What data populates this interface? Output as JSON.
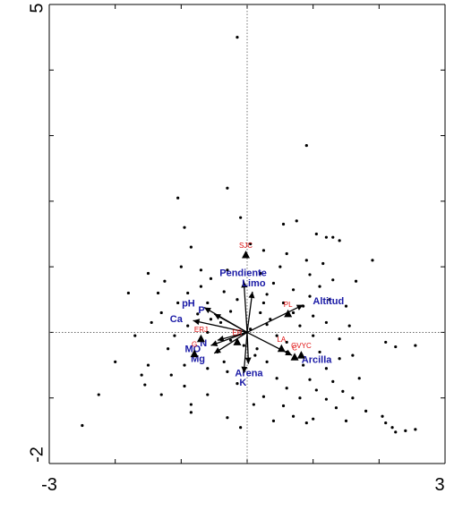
{
  "chart_data": {
    "type": "scatter",
    "title": "",
    "xlabel": "",
    "ylabel": "",
    "xlim": [
      -3,
      3
    ],
    "ylim": [
      -2,
      5
    ],
    "x_tick_labels": [
      "-3",
      "3"
    ],
    "y_tick_labels": [
      "5",
      "-2"
    ],
    "reference_lines": {
      "x": 0,
      "y": 0,
      "style": "dotted"
    },
    "colors": {
      "vectors": "#1a1aa6",
      "sites": "#e01010",
      "points": "#000000"
    },
    "vectors": [
      {
        "name": "Pendiente",
        "x": -0.05,
        "y": 0.78
      },
      {
        "name": "Limo",
        "x": 0.08,
        "y": 0.62
      },
      {
        "name": "Altitud",
        "x": 0.85,
        "y": 0.42
      },
      {
        "name": "Arcilla",
        "x": 0.68,
        "y": -0.35
      },
      {
        "name": "pH",
        "x": -0.65,
        "y": 0.38
      },
      {
        "name": "P",
        "x": -0.5,
        "y": 0.28
      },
      {
        "name": "Ca",
        "x": -0.82,
        "y": 0.18
      },
      {
        "name": "N",
        "x": -0.45,
        "y": -0.12
      },
      {
        "name": "MO",
        "x": -0.55,
        "y": -0.2
      },
      {
        "name": "Mg",
        "x": -0.5,
        "y": -0.32
      },
      {
        "name": "Arena",
        "x": 0.02,
        "y": -0.48
      },
      {
        "name": "K",
        "x": -0.05,
        "y": -0.62
      }
    ],
    "sites": [
      {
        "name": "SJC",
        "x": -0.02,
        "y": 1.18
      },
      {
        "name": "PL",
        "x": 0.62,
        "y": 0.28
      },
      {
        "name": "LA",
        "x": 0.52,
        "y": -0.25
      },
      {
        "name": "GVYC",
        "x": 0.82,
        "y": -0.35
      },
      {
        "name": "C",
        "x": 0.72,
        "y": -0.38
      },
      {
        "name": "ERJ",
        "x": -0.7,
        "y": -0.1
      },
      {
        "name": "ER",
        "x": -0.15,
        "y": -0.15
      },
      {
        "name": "G",
        "x": -0.8,
        "y": -0.33
      }
    ],
    "points": [
      [
        -0.15,
        4.5
      ],
      [
        0.9,
        2.85
      ],
      [
        -1.05,
        2.05
      ],
      [
        -0.3,
        2.2
      ],
      [
        -0.95,
        1.6
      ],
      [
        -0.1,
        1.75
      ],
      [
        0.55,
        1.65
      ],
      [
        0.75,
        1.7
      ],
      [
        1.05,
        1.5
      ],
      [
        1.2,
        1.45
      ],
      [
        1.3,
        1.45
      ],
      [
        1.4,
        1.4
      ],
      [
        -0.85,
        1.3
      ],
      [
        0.05,
        1.35
      ],
      [
        0.25,
        1.25
      ],
      [
        0.6,
        1.2
      ],
      [
        0.9,
        1.1
      ],
      [
        1.15,
        1.05
      ],
      [
        1.9,
        1.1
      ],
      [
        -1.5,
        0.9
      ],
      [
        -1.0,
        1.0
      ],
      [
        -0.7,
        0.95
      ],
      [
        -0.3,
        0.95
      ],
      [
        0.2,
        0.9
      ],
      [
        0.5,
        1.0
      ],
      [
        0.95,
        0.88
      ],
      [
        1.3,
        0.8
      ],
      [
        1.65,
        0.78
      ],
      [
        -1.25,
        0.78
      ],
      [
        -0.55,
        0.82
      ],
      [
        0.4,
        0.75
      ],
      [
        0.7,
        0.65
      ],
      [
        1.1,
        0.7
      ],
      [
        -1.8,
        0.6
      ],
      [
        -1.35,
        0.6
      ],
      [
        -0.9,
        0.6
      ],
      [
        -0.35,
        0.62
      ],
      [
        0.3,
        0.58
      ],
      [
        0.95,
        0.55
      ],
      [
        1.25,
        0.5
      ],
      [
        -1.05,
        0.45
      ],
      [
        -0.6,
        0.45
      ],
      [
        -0.15,
        0.5
      ],
      [
        0.55,
        0.45
      ],
      [
        1.5,
        0.4
      ],
      [
        -1.3,
        0.3
      ],
      [
        -0.75,
        0.28
      ],
      [
        -0.25,
        0.32
      ],
      [
        0.2,
        0.3
      ],
      [
        0.7,
        0.3
      ],
      [
        1.0,
        0.25
      ],
      [
        -1.45,
        0.15
      ],
      [
        -0.9,
        0.1
      ],
      [
        -0.4,
        0.15
      ],
      [
        0.3,
        0.12
      ],
      [
        0.8,
        0.1
      ],
      [
        1.2,
        0.15
      ],
      [
        1.55,
        0.1
      ],
      [
        -1.7,
        -0.05
      ],
      [
        -1.1,
        -0.05
      ],
      [
        -0.6,
        0.0
      ],
      [
        0.45,
        -0.05
      ],
      [
        1.0,
        -0.05
      ],
      [
        1.4,
        -0.1
      ],
      [
        2.1,
        -0.15
      ],
      [
        2.25,
        -0.22
      ],
      [
        2.55,
        -0.2
      ],
      [
        -1.2,
        -0.25
      ],
      [
        -0.45,
        -0.3
      ],
      [
        0.15,
        -0.25
      ],
      [
        0.6,
        -0.3
      ],
      [
        1.1,
        -0.3
      ],
      [
        1.4,
        -0.4
      ],
      [
        1.6,
        -0.35
      ],
      [
        -2.0,
        -0.45
      ],
      [
        -1.5,
        -0.5
      ],
      [
        -0.95,
        -0.5
      ],
      [
        -0.6,
        -0.55
      ],
      [
        0.3,
        -0.45
      ],
      [
        0.85,
        -0.5
      ],
      [
        1.2,
        -0.55
      ],
      [
        -1.6,
        -0.65
      ],
      [
        -1.15,
        -0.65
      ],
      [
        -0.3,
        -0.6
      ],
      [
        0.45,
        -0.7
      ],
      [
        0.95,
        -0.72
      ],
      [
        1.3,
        -0.75
      ],
      [
        1.7,
        -0.7
      ],
      [
        -1.55,
        -0.8
      ],
      [
        -0.95,
        -0.82
      ],
      [
        -0.15,
        -0.78
      ],
      [
        0.6,
        -0.85
      ],
      [
        1.05,
        -0.88
      ],
      [
        1.45,
        -0.9
      ],
      [
        -2.25,
        -0.95
      ],
      [
        -1.3,
        -0.95
      ],
      [
        -0.6,
        -0.95
      ],
      [
        0.25,
        -0.98
      ],
      [
        0.8,
        -1.0
      ],
      [
        1.2,
        -1.02
      ],
      [
        1.6,
        -1.0
      ],
      [
        -0.85,
        -1.1
      ],
      [
        0.1,
        -1.1
      ],
      [
        0.55,
        -1.12
      ],
      [
        1.35,
        -1.15
      ],
      [
        1.8,
        -1.2
      ],
      [
        -0.3,
        -1.3
      ],
      [
        0.7,
        -1.28
      ],
      [
        1.0,
        -1.32
      ],
      [
        1.5,
        -1.35
      ],
      [
        0.9,
        -1.38
      ],
      [
        0.4,
        -1.35
      ],
      [
        2.05,
        -1.28
      ],
      [
        -0.85,
        -1.22
      ],
      [
        -2.5,
        -1.42
      ],
      [
        -0.1,
        -1.45
      ],
      [
        2.1,
        -1.38
      ],
      [
        2.2,
        -1.45
      ],
      [
        2.25,
        -1.52
      ],
      [
        2.4,
        -1.5
      ],
      [
        2.55,
        -1.48
      ],
      [
        -0.25,
        -0.12
      ],
      [
        0.05,
        0.05
      ],
      [
        -0.05,
        -0.2
      ],
      [
        0.12,
        -0.35
      ],
      [
        0.35,
        0.2
      ],
      [
        -0.55,
        0.2
      ],
      [
        0.6,
        -0.15
      ],
      [
        -0.35,
        -0.45
      ],
      [
        0.25,
        0.45
      ],
      [
        0.85,
        0.4
      ],
      [
        -0.7,
        0.7
      ]
    ]
  }
}
